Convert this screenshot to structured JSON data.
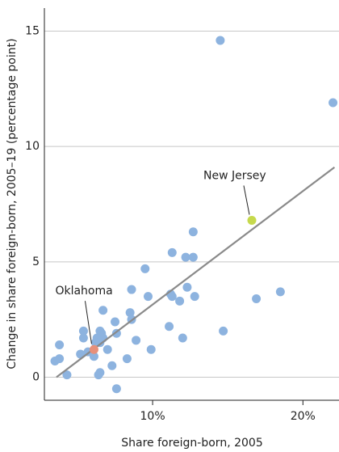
{
  "chart_data": {
    "type": "scatter",
    "x_label": "Share foreign-born, 2005",
    "y_label": "Change in share foreign-born, 2005–19 (percentage point)",
    "xlim": [
      2.8,
      22.4
    ],
    "ylim": [
      -1,
      16
    ],
    "xticks": [
      {
        "value": 10,
        "label": "10%"
      },
      {
        "value": 20,
        "label": "20%"
      }
    ],
    "yticks": [
      0,
      5,
      10,
      15
    ],
    "grid": true,
    "color": "#8db3df",
    "x": [
      14.5,
      22.0,
      12.7,
      11.3,
      12.2,
      12.7,
      9.5,
      8.6,
      12.3,
      11.2,
      11.3,
      9.7,
      12.8,
      11.8,
      18.5,
      16.9,
      6.7,
      8.5,
      8.6,
      7.5,
      11.1,
      14.7,
      5.4,
      6.5,
      5.4,
      6.6,
      6.7,
      7.6,
      6.3,
      8.9,
      12.0,
      3.8,
      6.2,
      6.5,
      7.0,
      9.9,
      5.2,
      5.7,
      6.1,
      8.3,
      3.5,
      3.8,
      7.3,
      6.5,
      6.4,
      4.3,
      7.6
    ],
    "y": [
      14.6,
      11.9,
      6.3,
      5.4,
      5.2,
      5.2,
      4.7,
      3.8,
      3.9,
      3.6,
      3.5,
      3.5,
      3.5,
      3.3,
      3.7,
      3.4,
      2.9,
      2.8,
      2.5,
      2.4,
      2.2,
      2.0,
      2.0,
      2.0,
      1.7,
      1.9,
      1.7,
      1.9,
      1.7,
      1.6,
      1.7,
      1.4,
      1.5,
      1.5,
      1.2,
      1.2,
      1.0,
      1.1,
      0.9,
      0.8,
      0.7,
      0.8,
      0.5,
      0.2,
      0.1,
      0.1,
      -0.5
    ],
    "highlights": [
      {
        "label": "New Jersey",
        "x": 16.6,
        "y": 6.8,
        "color": "#c6d94c"
      },
      {
        "label": "Oklahoma",
        "x": 6.1,
        "y": 1.2,
        "color": "#e8907a"
      }
    ],
    "trend_line": {
      "x": [
        3.6,
        22.1
      ],
      "y": [
        0.0,
        9.1
      ],
      "color": "#8a8a8a"
    }
  }
}
